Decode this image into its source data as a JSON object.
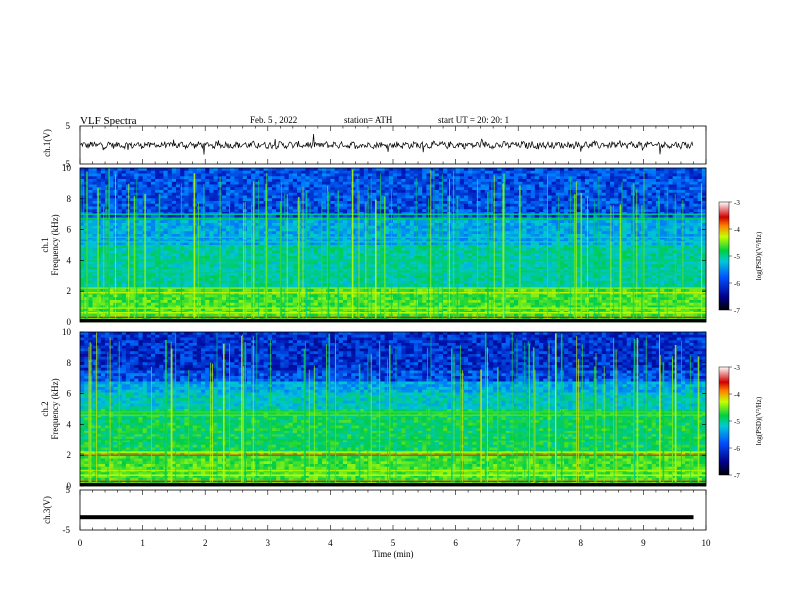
{
  "header": {
    "title": "VLF  Spectra",
    "date": "Feb. 5  , 2022",
    "station": "station= ATH",
    "start_ut": "start  UT  =    20: 20: 1"
  },
  "colors": {
    "spectrogram_low": "#00007a",
    "spectrogram_mid": "#00cc44",
    "spectrogram_high": "#ffff00",
    "spectrogram_peak": "#cc0000",
    "trace": "#000000"
  },
  "chart_data": [
    {
      "type": "line",
      "panel": "ch1-waveform",
      "ylabel": "ch.1(V)",
      "ylim": [
        -5,
        5
      ],
      "yticks": [
        "5",
        "-5"
      ],
      "x_range_min": [
        0,
        9.8
      ],
      "description_level": "noisy trace around 0 V with occasional spikes"
    },
    {
      "type": "heatmap",
      "panel": "ch1-spectrogram",
      "ylabel": "ch.1\nFrequency (kHz)",
      "ylabel_lines": [
        "ch.1",
        "Frequency (kHz)"
      ],
      "ylim": [
        0,
        10
      ],
      "yticks": [
        "0",
        "2",
        "4",
        "6",
        "8",
        "10"
      ],
      "colorbar": {
        "label": "log(PSD)(V²/Hz)",
        "range": [
          -7,
          -3
        ],
        "ticks": [
          "-3",
          "-4",
          "-5",
          "-6",
          "-7"
        ]
      }
    },
    {
      "type": "heatmap",
      "panel": "ch2-spectrogram",
      "ylabel": "ch.2\nFrequency (kHz)",
      "ylabel_lines": [
        "ch.2",
        "Frequency (kHz)"
      ],
      "ylim": [
        0,
        10
      ],
      "yticks": [
        "0",
        "2",
        "4",
        "6",
        "8",
        "10"
      ],
      "colorbar": {
        "label": "log(PSD)(V²/Hz)",
        "range": [
          -7,
          -3
        ],
        "ticks": [
          "-3",
          "-4",
          "-5",
          "-6",
          "-7"
        ]
      }
    },
    {
      "type": "line",
      "panel": "ch3-waveform",
      "ylabel": "ch.3(V)",
      "ylim": [
        -5,
        5
      ],
      "yticks": [
        "5",
        "-5"
      ],
      "level_v": -1.8
    }
  ],
  "xaxis": {
    "label": "Time  (min)",
    "range": [
      0,
      10
    ],
    "ticks": [
      "0",
      "1",
      "2",
      "3",
      "4",
      "5",
      "6",
      "7",
      "8",
      "9",
      "10"
    ]
  }
}
